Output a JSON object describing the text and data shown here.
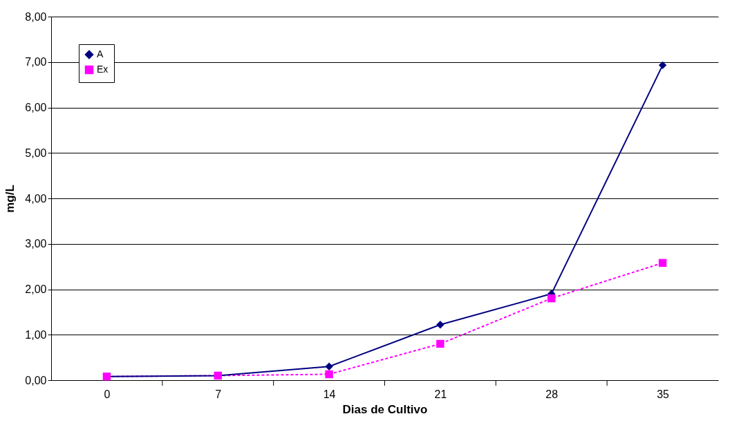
{
  "chart_data": {
    "type": "line",
    "xlabel": "Dias de Cultivo",
    "ylabel": "mg/L",
    "categories": [
      "0",
      "7",
      "14",
      "21",
      "28",
      "35"
    ],
    "series": [
      {
        "name": "A",
        "color": "#000080",
        "marker": "diamond",
        "line_style": "solid",
        "values": [
          0.08,
          0.1,
          0.3,
          1.22,
          1.9,
          6.93
        ]
      },
      {
        "name": "Ex",
        "color": "#ff00ff",
        "marker": "square",
        "line_style": "dashed",
        "values": [
          0.08,
          0.1,
          0.13,
          0.8,
          1.8,
          2.58
        ]
      }
    ],
    "ylim": [
      0,
      8
    ],
    "yticks": [
      {
        "value": 0,
        "label": "0,00"
      },
      {
        "value": 1,
        "label": "1,00"
      },
      {
        "value": 2,
        "label": "2,00"
      },
      {
        "value": 3,
        "label": "3,00"
      },
      {
        "value": 4,
        "label": "4,00"
      },
      {
        "value": 5,
        "label": "5,00"
      },
      {
        "value": 6,
        "label": "6,00"
      },
      {
        "value": 7,
        "label": "7,00"
      },
      {
        "value": 8,
        "label": "8,00"
      }
    ],
    "grid": "y",
    "legend": "top left"
  }
}
